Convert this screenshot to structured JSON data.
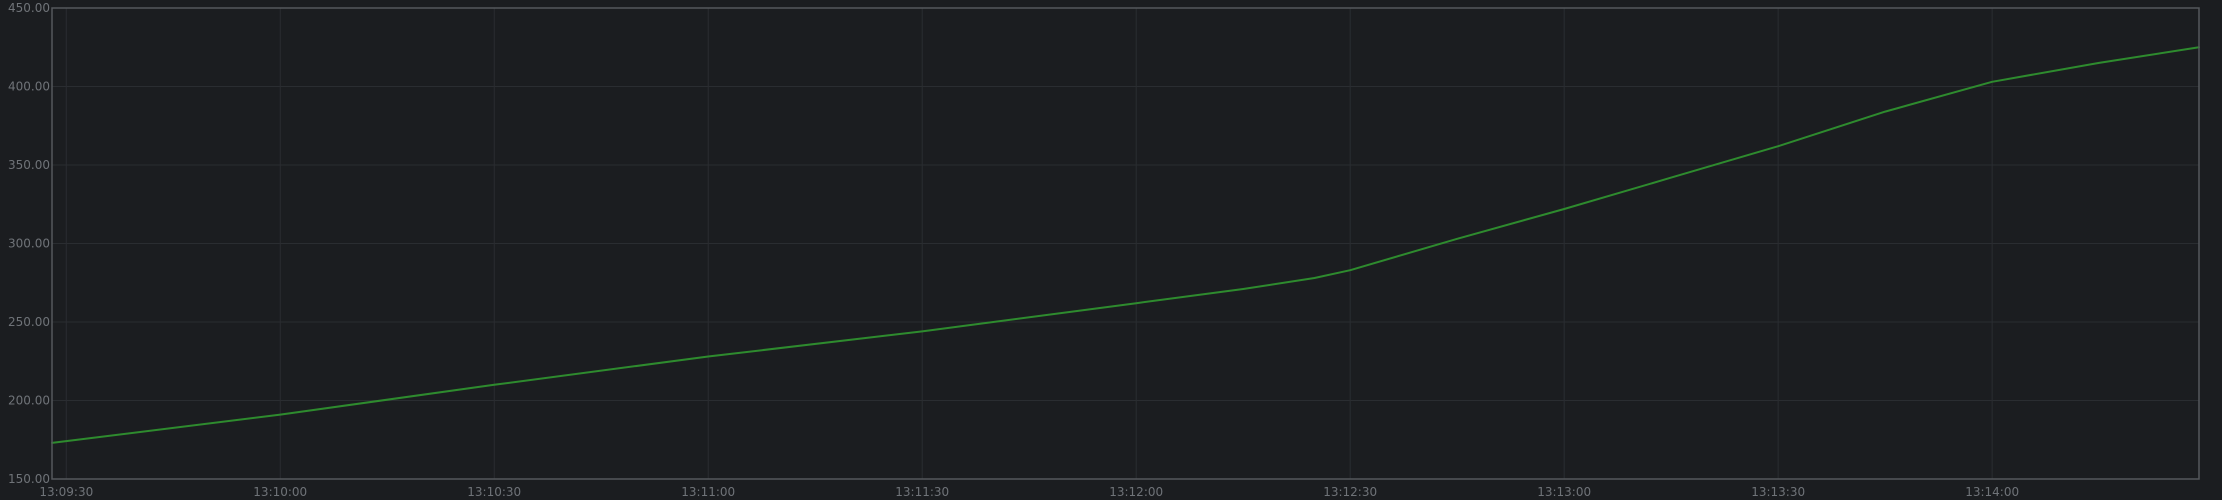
{
  "chart_data": {
    "type": "line",
    "title": "",
    "xlabel": "",
    "ylabel": "",
    "grid": true,
    "legend": "none",
    "x_range": [
      "13:09:28",
      "13:14:29"
    ],
    "ylim": [
      150,
      450
    ],
    "y_ticks": [
      {
        "value": 150,
        "label": "150.00"
      },
      {
        "value": 200,
        "label": "200.00"
      },
      {
        "value": 250,
        "label": "250.00"
      },
      {
        "value": 300,
        "label": "300.00"
      },
      {
        "value": 350,
        "label": "350.00"
      },
      {
        "value": 400,
        "label": "400.00"
      },
      {
        "value": 450,
        "label": "450.00"
      }
    ],
    "x_ticks": [
      "13:09:30",
      "13:10:00",
      "13:10:30",
      "13:11:00",
      "13:11:30",
      "13:12:00",
      "13:12:30",
      "13:13:00",
      "13:13:30",
      "13:14:00"
    ],
    "series": [
      {
        "color": "#2e8b2e",
        "x": [
          "13:09:28",
          "13:10:00",
          "13:10:30",
          "13:11:00",
          "13:11:30",
          "13:12:00",
          "13:12:15",
          "13:12:25",
          "13:12:30",
          "13:12:45",
          "13:13:00",
          "13:13:15",
          "13:13:30",
          "13:13:45",
          "13:14:00",
          "13:14:15",
          "13:14:29"
        ],
        "values": [
          173,
          191,
          210,
          228,
          244,
          262,
          271,
          278,
          283,
          303,
          322,
          342,
          362,
          384,
          403,
          415,
          425
        ]
      }
    ]
  },
  "colors": {
    "background": "#1b1d20",
    "border": "#55585c",
    "grid": "#2a2d31",
    "tick_text": "#6f7378",
    "line": "#2e8b2e"
  }
}
